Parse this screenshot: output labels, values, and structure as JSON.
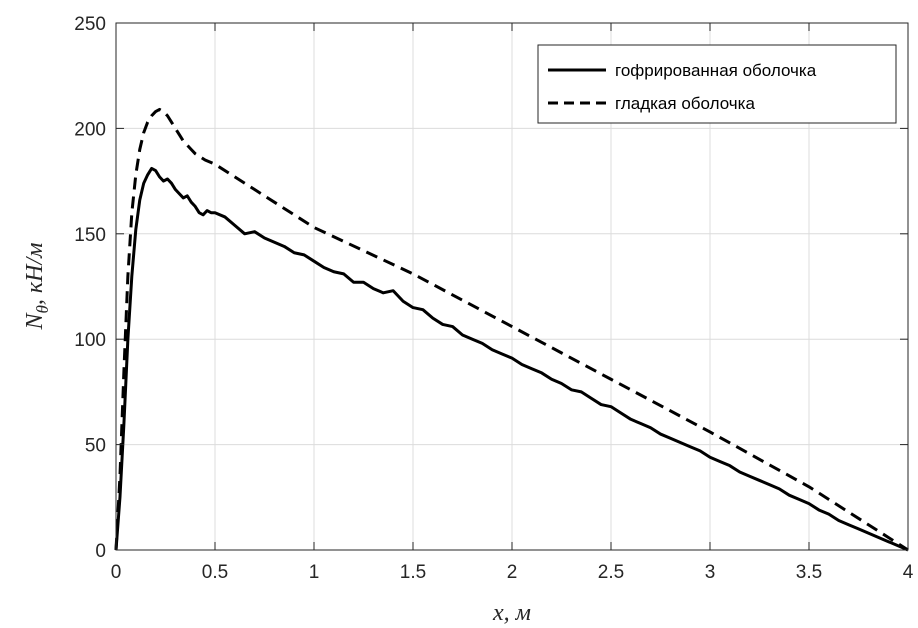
{
  "chart_data": {
    "type": "line",
    "xlabel": "x, м",
    "ylabel_main": "N",
    "ylabel_sub": "θ",
    "ylabel_rest": ", кН/м",
    "xlim": [
      0,
      4
    ],
    "ylim": [
      0,
      250
    ],
    "xticks": [
      0,
      0.5,
      1,
      1.5,
      2,
      2.5,
      3,
      3.5,
      4
    ],
    "xtick_labels": [
      "0",
      "0.5",
      "1",
      "1.5",
      "2",
      "2.5",
      "3",
      "3.5",
      "4"
    ],
    "yticks": [
      0,
      50,
      100,
      150,
      200,
      250
    ],
    "ytick_labels": [
      "0",
      "50",
      "100",
      "150",
      "200",
      "250"
    ],
    "grid": true,
    "legend_position": "top-right",
    "series": [
      {
        "name": "гофрированная оболочка",
        "style": "solid",
        "color": "#000000",
        "x": [
          0,
          0.02,
          0.04,
          0.06,
          0.08,
          0.1,
          0.12,
          0.14,
          0.16,
          0.18,
          0.2,
          0.22,
          0.24,
          0.26,
          0.28,
          0.3,
          0.32,
          0.34,
          0.36,
          0.38,
          0.4,
          0.42,
          0.44,
          0.46,
          0.48,
          0.5,
          0.55,
          0.6,
          0.65,
          0.7,
          0.75,
          0.8,
          0.85,
          0.9,
          0.95,
          1.0,
          1.05,
          1.1,
          1.15,
          1.2,
          1.25,
          1.3,
          1.35,
          1.4,
          1.45,
          1.5,
          1.55,
          1.6,
          1.65,
          1.7,
          1.75,
          1.8,
          1.85,
          1.9,
          1.95,
          2.0,
          2.05,
          2.1,
          2.15,
          2.2,
          2.25,
          2.3,
          2.35,
          2.4,
          2.45,
          2.5,
          2.55,
          2.6,
          2.65,
          2.7,
          2.75,
          2.8,
          2.85,
          2.9,
          2.95,
          3.0,
          3.05,
          3.1,
          3.15,
          3.2,
          3.25,
          3.3,
          3.35,
          3.4,
          3.45,
          3.5,
          3.55,
          3.6,
          3.65,
          3.7,
          3.75,
          3.8,
          3.85,
          3.9,
          3.95,
          4.0
        ],
        "y": [
          0,
          25,
          60,
          100,
          130,
          152,
          166,
          174,
          178,
          181,
          180,
          177,
          175,
          176,
          174,
          171,
          169,
          167,
          168,
          165,
          163,
          160,
          159,
          161,
          160,
          160,
          158,
          154,
          150,
          151,
          148,
          146,
          144,
          141,
          140,
          137,
          134,
          132,
          131,
          127,
          127,
          124,
          122,
          123,
          118,
          115,
          114,
          110,
          107,
          106,
          102,
          100,
          98,
          95,
          93,
          91,
          88,
          86,
          84,
          81,
          79,
          76,
          75,
          72,
          69,
          68,
          65,
          62,
          60,
          58,
          55,
          53,
          51,
          49,
          47,
          44,
          42,
          40,
          37,
          35,
          33,
          31,
          29,
          26,
          24,
          22,
          19,
          17,
          14,
          12,
          10,
          8,
          6,
          4,
          2,
          0
        ]
      },
      {
        "name": "гладкая оболочка",
        "style": "dashed",
        "color": "#000000",
        "x": [
          0,
          0.02,
          0.04,
          0.06,
          0.08,
          0.1,
          0.12,
          0.14,
          0.16,
          0.18,
          0.2,
          0.22,
          0.24,
          0.26,
          0.28,
          0.3,
          0.32,
          0.34,
          0.36,
          0.38,
          0.4,
          0.45,
          0.5,
          0.6,
          0.7,
          0.8,
          0.9,
          1.0,
          1.5,
          2.0,
          2.5,
          3.0,
          3.5,
          4.0
        ],
        "y": [
          0,
          35,
          85,
          130,
          160,
          178,
          190,
          198,
          203,
          206,
          208,
          209,
          208,
          206,
          203,
          200,
          197,
          194,
          192,
          190,
          188,
          185,
          183,
          177,
          171,
          165,
          159,
          153,
          131,
          106,
          81,
          56,
          30,
          0
        ]
      }
    ]
  }
}
